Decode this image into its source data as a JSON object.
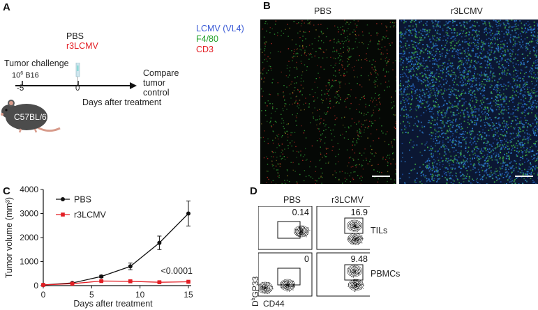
{
  "panel_a": {
    "letter": "A",
    "pbs": "PBS",
    "r3lcmv": "r3LCMV",
    "challenge_line1": "Tumor challenge",
    "challenge_exp": "6",
    "challenge_pre": "10",
    "challenge_post": " B16",
    "mouse_label": "C57BL/6",
    "tick_minus5": "-5",
    "tick_0": "0",
    "compare": [
      "Compare",
      "tumor",
      "control"
    ],
    "axis_label": "Days after treatment",
    "colors": {
      "pbs": "#222222",
      "r3lcmv": "#e31e24"
    }
  },
  "panel_b": {
    "letter": "B",
    "legend": [
      {
        "text": "LCMV (VL4)",
        "color": "#3b5bd6"
      },
      {
        "text": "F4/80",
        "color": "#22a02a"
      },
      {
        "text": "CD3",
        "color": "#e31e24"
      }
    ],
    "left_title": "PBS",
    "right_title": "r3LCMV"
  },
  "panel_c": {
    "letter": "C",
    "pvalue": "<0.0001",
    "chart_data": {
      "type": "line",
      "xlabel": "Days after treatment",
      "ylabel": "Tumor volume (mm³)",
      "xlim": [
        0,
        15
      ],
      "ylim": [
        0,
        4000
      ],
      "xticks": [
        "0",
        "5",
        "10",
        "15"
      ],
      "yticks": [
        "0",
        "1000",
        "2000",
        "3000",
        "4000"
      ],
      "legend_position": "top-left",
      "series": [
        {
          "name": "PBS",
          "color": "#111111",
          "marker": "circle",
          "x": [
            0,
            3,
            6,
            9,
            12,
            15
          ],
          "y": [
            30,
            110,
            380,
            800,
            1780,
            3000
          ],
          "err": [
            10,
            25,
            50,
            140,
            280,
            520
          ]
        },
        {
          "name": "r3LCMV",
          "color": "#e31e24",
          "marker": "square",
          "x": [
            0,
            3,
            6,
            9,
            12,
            15
          ],
          "y": [
            30,
            80,
            190,
            180,
            140,
            160
          ],
          "err": [
            5,
            10,
            25,
            20,
            20,
            15
          ]
        }
      ]
    }
  },
  "panel_d": {
    "letter": "D",
    "col_pbs": "PBS",
    "col_r3": "r3LCMV",
    "row_tils": "TILs",
    "row_pbmcs": "PBMCs",
    "vals": {
      "tils_pbs": "0.14",
      "tils_r3": "16.9",
      "pbmcs_pbs": "0",
      "pbmcs_r3": "9.48"
    },
    "ylabel": "DbGP33",
    "ylabel_main": "D",
    "ylabel_sup": "b",
    "ylabel_rest": "GP33",
    "xlabel": "CD44"
  }
}
